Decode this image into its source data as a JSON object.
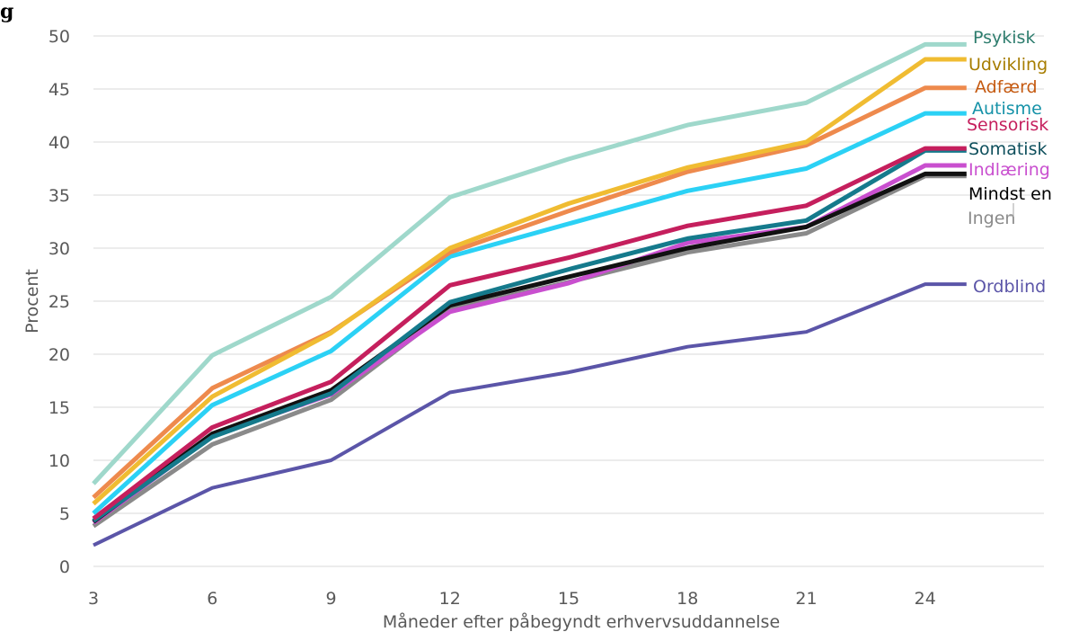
{
  "figure_label": "g",
  "chart_data": {
    "type": "line",
    "title": "",
    "xlabel": "Måneder efter påbegyndt erhvervsuddannelse",
    "ylabel": "Procent",
    "x": [
      3,
      6,
      9,
      12,
      15,
      18,
      21,
      24
    ],
    "xlim": [
      3,
      27
    ],
    "ylim": [
      0,
      50
    ],
    "yticks": [
      0,
      5,
      10,
      15,
      20,
      25,
      30,
      35,
      40,
      45,
      50
    ],
    "xticks": [
      3,
      6,
      9,
      12,
      15,
      18,
      21,
      24
    ],
    "grid": "horizontal",
    "legend": "labels at line ends (right)",
    "series": [
      {
        "name": "Psykisk",
        "color": "#9fd8cb",
        "label_color": "#2e7d6e",
        "values": [
          7.8,
          19.9,
          25.4,
          34.8,
          38.4,
          41.6,
          43.7,
          49.2
        ]
      },
      {
        "name": "Udvikling",
        "color": "#f0bc32",
        "label_color": "#a77d00",
        "values": [
          5.9,
          16.0,
          22.0,
          30.0,
          34.2,
          37.6,
          40.0,
          47.8
        ]
      },
      {
        "name": "Adfærd",
        "color": "#ee8a4d",
        "label_color": "#c55a11",
        "values": [
          6.5,
          16.8,
          22.1,
          29.6,
          33.5,
          37.2,
          39.7,
          45.1
        ]
      },
      {
        "name": "Autisme",
        "color": "#2bd1f5",
        "label_color": "#1592a8",
        "values": [
          5.0,
          15.2,
          20.3,
          29.2,
          32.3,
          35.4,
          37.5,
          42.7
        ]
      },
      {
        "name": "Sensorisk",
        "color": "#c51f5d",
        "label_color": "#c51f5d",
        "values": [
          4.5,
          13.1,
          17.4,
          26.5,
          29.1,
          32.1,
          34.0,
          39.4
        ]
      },
      {
        "name": "Somatisk",
        "color": "#157a8c",
        "label_color": "#0e4f5c",
        "values": [
          4.3,
          12.2,
          16.3,
          24.9,
          28.0,
          30.9,
          32.6,
          39.2
        ]
      },
      {
        "name": "Indlæring",
        "color": "#c94fcf",
        "label_color": "#c94fcf",
        "values": [
          4.1,
          12.3,
          16.2,
          24.0,
          26.7,
          30.5,
          32.0,
          37.8
        ]
      },
      {
        "name": "Mindst en",
        "color": "#111111",
        "label_color": "#000000",
        "values": [
          4.2,
          12.5,
          16.6,
          24.6,
          27.3,
          30.0,
          32.0,
          37.0
        ]
      },
      {
        "name": "Ingen",
        "color": "#8a8a8a",
        "label_color": "#8a8a8a",
        "values": [
          3.8,
          11.5,
          15.7,
          24.2,
          26.8,
          29.6,
          31.4,
          36.8
        ]
      },
      {
        "name": "Ordblind",
        "color": "#5b55a8",
        "label_color": "#5b55a8",
        "values": [
          2.0,
          7.4,
          10.0,
          16.4,
          18.3,
          20.7,
          22.1,
          26.6
        ]
      }
    ]
  }
}
